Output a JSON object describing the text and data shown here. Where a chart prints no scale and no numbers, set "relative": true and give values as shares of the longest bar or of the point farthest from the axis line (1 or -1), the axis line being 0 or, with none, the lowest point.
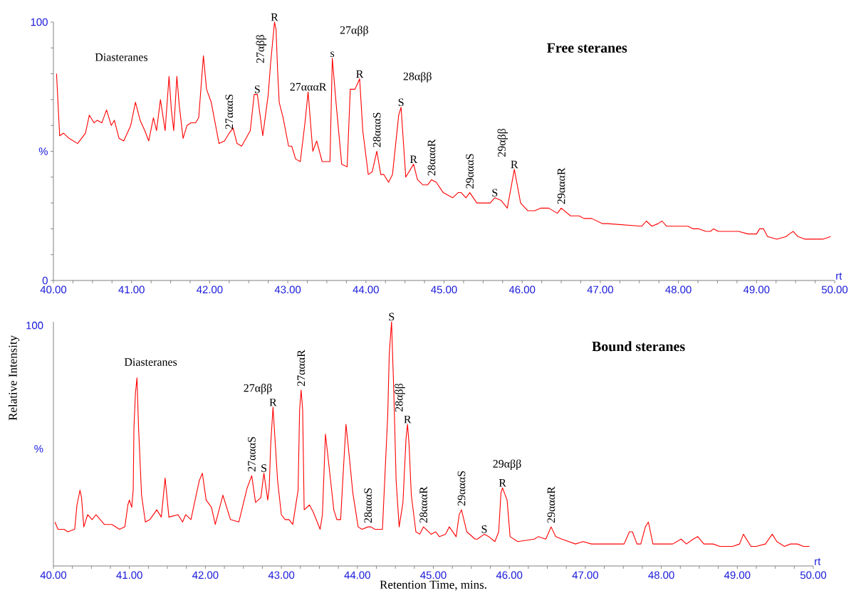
{
  "chart_data": [
    {
      "type": "line",
      "title": "Free steranes",
      "color": "#ff0000",
      "xlim": [
        40,
        50
      ],
      "ylim": [
        0,
        100
      ],
      "xticks": [
        {
          "value": 40,
          "label": "40.00"
        },
        {
          "value": 40.25,
          "label": null
        },
        {
          "value": 40.5,
          "label": null
        },
        {
          "value": 40.75,
          "label": null
        },
        {
          "value": 41,
          "label": "41.00"
        },
        {
          "value": 41.25,
          "label": null
        },
        {
          "value": 41.5,
          "label": null
        },
        {
          "value": 41.75,
          "label": null
        },
        {
          "value": 42,
          "label": "42.00"
        },
        {
          "value": 42.25,
          "label": null
        },
        {
          "value": 42.5,
          "label": null
        },
        {
          "value": 42.75,
          "label": null
        },
        {
          "value": 43,
          "label": "43.00"
        },
        {
          "value": 43.25,
          "label": null
        },
        {
          "value": 43.5,
          "label": null
        },
        {
          "value": 43.75,
          "label": null
        },
        {
          "value": 44,
          "label": "44.00"
        },
        {
          "value": 44.25,
          "label": null
        },
        {
          "value": 44.5,
          "label": null
        },
        {
          "value": 44.75,
          "label": null
        },
        {
          "value": 45,
          "label": "45.00"
        },
        {
          "value": 45.25,
          "label": null
        },
        {
          "value": 45.5,
          "label": null
        },
        {
          "value": 45.75,
          "label": null
        },
        {
          "value": 46,
          "label": "46.00"
        },
        {
          "value": 46.25,
          "label": null
        },
        {
          "value": 46.5,
          "label": null
        },
        {
          "value": 46.75,
          "label": null
        },
        {
          "value": 47,
          "label": "47.00"
        },
        {
          "value": 47.25,
          "label": null
        },
        {
          "value": 47.5,
          "label": null
        },
        {
          "value": 47.75,
          "label": null
        },
        {
          "value": 48,
          "label": "48.00"
        },
        {
          "value": 48.25,
          "label": null
        },
        {
          "value": 48.5,
          "label": null
        },
        {
          "value": 48.75,
          "label": null
        },
        {
          "value": 49,
          "label": "49.00"
        },
        {
          "value": 49.25,
          "label": null
        },
        {
          "value": 49.5,
          "label": null
        },
        {
          "value": 49.75,
          "label": null
        },
        {
          "value": 50,
          "label": "50.00"
        }
      ],
      "yticks": [
        0,
        {
          "value": 10,
          "label": null
        },
        {
          "value": 20,
          "label": null
        },
        {
          "value": 30,
          "label": null
        },
        {
          "value": 40,
          "label": null
        },
        {
          "value": 50,
          "label": "%"
        },
        {
          "value": 60,
          "label": null
        },
        {
          "value": 70,
          "label": null
        },
        {
          "value": 80,
          "label": null
        },
        {
          "value": 90,
          "label": null
        },
        100
      ],
      "x": [
        40.04,
        40.06,
        40.08,
        40.13,
        40.2,
        40.31,
        40.41,
        40.46,
        40.52,
        40.56,
        40.62,
        40.68,
        40.74,
        40.78,
        40.84,
        40.9,
        40.99,
        41.05,
        41.11,
        41.17,
        41.22,
        41.28,
        41.32,
        41.37,
        41.43,
        41.48,
        41.51,
        41.54,
        41.58,
        41.61,
        41.66,
        41.71,
        41.76,
        41.82,
        41.86,
        41.9,
        41.92,
        41.96,
        42.02,
        42.12,
        42.19,
        42.25,
        42.3,
        42.35,
        42.41,
        42.52,
        42.57,
        42.61,
        42.68,
        42.75,
        42.78,
        42.83,
        42.85,
        42.87,
        42.89,
        42.94,
        43.01,
        43.05,
        43.1,
        43.16,
        43.22,
        43.26,
        43.32,
        43.37,
        43.44,
        43.54,
        43.57,
        43.62,
        43.69,
        43.76,
        43.8,
        43.86,
        43.92,
        43.96,
        44.03,
        44.08,
        44.14,
        44.19,
        44.23,
        44.29,
        44.34,
        44.42,
        44.45,
        44.51,
        44.61,
        44.66,
        44.73,
        44.79,
        44.84,
        44.9,
        44.99,
        45.11,
        45.18,
        45.22,
        45.28,
        45.33,
        45.42,
        45.59,
        45.65,
        45.73,
        45.81,
        45.9,
        45.98,
        46.07,
        46.16,
        46.24,
        46.34,
        46.45,
        46.5,
        46.62,
        46.66,
        46.73,
        46.79,
        46.89,
        47.03,
        47.09,
        47.53,
        47.59,
        47.66,
        47.74,
        47.79,
        47.85,
        48.0,
        48.12,
        48.19,
        48.26,
        48.35,
        48.41,
        48.45,
        48.51,
        48.62,
        48.77,
        48.89,
        49.0,
        49.04,
        49.09,
        49.14,
        49.26,
        49.38,
        49.42,
        49.47,
        49.53,
        49.62,
        49.82,
        49.85,
        49.95
      ],
      "values": [
        80,
        68,
        56,
        57,
        55,
        53,
        57,
        64,
        61,
        62,
        61,
        66,
        60,
        62,
        55,
        54,
        60,
        69,
        62,
        58,
        54,
        63,
        58,
        70,
        58,
        79,
        66,
        58,
        79,
        68,
        55,
        60,
        61,
        61,
        63,
        79,
        87,
        74,
        69,
        53,
        54,
        57,
        59,
        53,
        52,
        58,
        72,
        72,
        56,
        72,
        84,
        100,
        97,
        81,
        69,
        63,
        52,
        52,
        47,
        46,
        61,
        73,
        50,
        54,
        46,
        46,
        86,
        68,
        45,
        44,
        74,
        74,
        78,
        58,
        41,
        42,
        50,
        41,
        41,
        38,
        41,
        64,
        67,
        40,
        45,
        39,
        37,
        37,
        39,
        38,
        34,
        32,
        34,
        34,
        32,
        34,
        30,
        30,
        32,
        31,
        28,
        43,
        30,
        27,
        27,
        28,
        28,
        26,
        28,
        25,
        25,
        25,
        24,
        24,
        22,
        22,
        21,
        23,
        21,
        22,
        23,
        21,
        21,
        21,
        20,
        20,
        19,
        19,
        20,
        19,
        19,
        19,
        18,
        18,
        20,
        20,
        17,
        16,
        17,
        18,
        19,
        17,
        16,
        16,
        16,
        17
      ],
      "annotations": [
        {
          "text": "27αααS",
          "x": 42.25,
          "y": 57
        },
        {
          "text": "S",
          "x": 42.61,
          "y": 72
        },
        {
          "text": "R",
          "x": 42.83,
          "y": 100
        },
        {
          "text": "27αααR",
          "x": 43.26,
          "y": 73
        },
        {
          "text": "s",
          "x": 43.57,
          "y": 86
        },
        {
          "text": "R",
          "x": 43.92,
          "y": 78
        },
        {
          "text": "28αααS",
          "x": 44.14,
          "y": 50
        },
        {
          "text": "S",
          "x": 44.45,
          "y": 67
        },
        {
          "text": "R",
          "x": 44.61,
          "y": 45
        },
        {
          "text": "28αααR",
          "x": 44.84,
          "y": 39
        },
        {
          "text": "29αααS",
          "x": 45.33,
          "y": 34
        },
        {
          "text": "S",
          "x": 45.65,
          "y": 32
        },
        {
          "text": "R",
          "x": 45.9,
          "y": 43
        },
        {
          "text": "29αααR",
          "x": 46.5,
          "y": 28
        },
        "Diasteranes",
        "27αββ",
        "27αββ",
        "28αββ",
        "29αββ",
        "rt"
      ]
    },
    {
      "type": "line",
      "title": "Bound steranes",
      "xlabel": "Retention Time, mins.",
      "ylabel": "Relative Intensity",
      "color": "#ff0000",
      "relative": true,
      "xlim": [
        40,
        50
      ],
      "xticks": [
        {
          "value": 40,
          "label": "40.00"
        },
        {
          "value": 40.25,
          "label": null
        },
        {
          "value": 40.5,
          "label": null
        },
        {
          "value": 40.75,
          "label": null
        },
        {
          "value": 41,
          "label": "41.00"
        },
        {
          "value": 41.25,
          "label": null
        },
        {
          "value": 41.5,
          "label": null
        },
        {
          "value": 41.75,
          "label": null
        },
        {
          "value": 42,
          "label": "42.00"
        },
        {
          "value": 42.25,
          "label": null
        },
        {
          "value": 42.5,
          "label": null
        },
        {
          "value": 42.75,
          "label": null
        },
        {
          "value": 43,
          "label": "43.00"
        },
        {
          "value": 43.25,
          "label": null
        },
        {
          "value": 43.5,
          "label": null
        },
        {
          "value": 43.75,
          "label": null
        },
        {
          "value": 44,
          "label": "44.00"
        },
        {
          "value": 44.25,
          "label": null
        },
        {
          "value": 44.5,
          "label": null
        },
        {
          "value": 44.75,
          "label": null
        },
        {
          "value": 45,
          "label": "45.00"
        },
        {
          "value": 45.25,
          "label": null
        },
        {
          "value": 45.5,
          "label": null
        },
        {
          "value": 45.75,
          "label": null
        },
        {
          "value": 46,
          "label": "46.00"
        },
        {
          "value": 46.25,
          "label": null
        },
        {
          "value": 46.5,
          "label": null
        },
        {
          "value": 46.75,
          "label": null
        },
        {
          "value": 47,
          "label": "47.00"
        },
        {
          "value": 47.25,
          "label": null
        },
        {
          "value": 47.5,
          "label": null
        },
        {
          "value": 47.75,
          "label": null
        },
        {
          "value": 48,
          "label": "48.00"
        },
        {
          "value": 48.25,
          "label": null
        },
        {
          "value": 48.5,
          "label": null
        },
        {
          "value": 48.75,
          "label": null
        },
        {
          "value": 49,
          "label": "49.00"
        },
        {
          "value": 49.25,
          "label": null
        },
        {
          "value": 49.5,
          "label": null
        },
        {
          "value": 49.75,
          "label": null
        },
        {
          "value": 50,
          "label": "50.00"
        }
      ],
      "x": [
        40.02,
        40.06,
        40.14,
        40.19,
        40.28,
        40.31,
        40.35,
        40.37,
        40.4,
        40.45,
        40.51,
        40.56,
        40.67,
        40.77,
        40.87,
        40.94,
        40.98,
        41.0,
        41.03,
        41.05,
        41.06,
        41.08,
        41.1,
        41.12,
        41.16,
        41.21,
        41.27,
        41.36,
        41.42,
        41.47,
        41.52,
        41.64,
        41.7,
        41.74,
        41.81,
        41.92,
        41.96,
        42.01,
        42.08,
        42.13,
        42.23,
        42.33,
        42.44,
        42.55,
        42.61,
        42.66,
        42.73,
        42.77,
        42.82,
        42.84,
        42.86,
        42.89,
        42.92,
        42.95,
        43.0,
        43.05,
        43.1,
        43.15,
        43.22,
        43.24,
        43.26,
        43.28,
        43.3,
        43.37,
        43.42,
        43.51,
        43.54,
        43.58,
        43.63,
        43.69,
        43.73,
        43.78,
        43.81,
        43.85,
        43.89,
        43.94,
        44.01,
        44.06,
        44.14,
        44.18,
        44.23,
        44.28,
        44.33,
        44.4,
        44.42,
        44.45,
        44.46,
        44.48,
        44.51,
        44.55,
        44.6,
        44.64,
        44.66,
        44.68,
        44.71,
        44.77,
        44.82,
        44.87,
        44.97,
        45.03,
        45.08,
        45.16,
        45.21,
        45.3,
        45.34,
        45.37,
        45.44,
        45.55,
        45.58,
        45.67,
        45.73,
        45.81,
        45.86,
        45.89,
        45.91,
        45.97,
        46.01,
        46.11,
        46.33,
        46.38,
        46.48,
        46.55,
        46.61,
        46.69,
        46.78,
        46.87,
        46.97,
        47.08,
        47.22,
        47.4,
        47.51,
        47.58,
        47.62,
        47.68,
        47.73,
        47.79,
        47.83,
        47.89,
        47.99,
        48.15,
        48.26,
        48.33,
        48.42,
        48.48,
        48.56,
        48.68,
        48.77,
        48.94,
        49.03,
        49.08,
        49.18,
        49.25,
        49.37,
        49.46,
        49.52,
        49.62,
        49.7,
        49.79,
        49.87,
        49.95
      ],
      "values": [
        0.18,
        0.15,
        0.15,
        0.14,
        0.15,
        0.25,
        0.31,
        0.28,
        0.16,
        0.21,
        0.19,
        0.21,
        0.17,
        0.17,
        0.15,
        0.16,
        0.25,
        0.27,
        0.24,
        0.31,
        0.57,
        0.71,
        0.77,
        0.57,
        0.29,
        0.18,
        0.19,
        0.23,
        0.2,
        0.36,
        0.2,
        0.21,
        0.18,
        0.21,
        0.19,
        0.35,
        0.38,
        0.27,
        0.24,
        0.17,
        0.29,
        0.19,
        0.18,
        0.32,
        0.37,
        0.26,
        0.28,
        0.38,
        0.27,
        0.32,
        0.5,
        0.65,
        0.5,
        0.35,
        0.21,
        0.19,
        0.19,
        0.17,
        0.31,
        0.64,
        0.72,
        0.64,
        0.23,
        0.25,
        0.22,
        0.15,
        0.21,
        0.54,
        0.4,
        0.23,
        0.19,
        0.19,
        0.36,
        0.58,
        0.46,
        0.3,
        0.16,
        0.15,
        0.16,
        0.16,
        0.15,
        0.15,
        0.15,
        0.62,
        0.87,
        1,
        0.9,
        0.71,
        0.35,
        0.16,
        0.26,
        0.52,
        0.58,
        0.5,
        0.29,
        0.14,
        0.13,
        0.16,
        0.13,
        0.14,
        0.12,
        0.13,
        0.16,
        0.12,
        0.21,
        0.23,
        0.14,
        0.11,
        0.11,
        0.13,
        0.12,
        0.1,
        0.14,
        0.3,
        0.32,
        0.27,
        0.12,
        0.1,
        0.11,
        0.12,
        0.11,
        0.16,
        0.12,
        0.11,
        0.1,
        0.09,
        0.1,
        0.09,
        0.09,
        0.09,
        0.09,
        0.14,
        0.14,
        0.09,
        0.09,
        0.16,
        0.18,
        0.09,
        0.09,
        0.09,
        0.11,
        0.09,
        0.11,
        0.12,
        0.09,
        0.09,
        0.08,
        0.08,
        0.09,
        0.13,
        0.08,
        0.08,
        0.09,
        0.13,
        0.1,
        0.08,
        0.09,
        0.09,
        0.08,
        0.08
      ],
      "annotations": [
        {
          "text": "27αααS",
          "x": 42.61,
          "y": 0.37
        },
        {
          "text": "S",
          "x": 42.77,
          "y": 0.38
        },
        {
          "text": "R",
          "x": 42.89,
          "y": 0.65
        },
        {
          "text": "27αααR",
          "x": 43.26,
          "y": 0.72
        },
        {
          "text": "S",
          "x": 44.45,
          "y": 1
        },
        {
          "text": "R",
          "x": 44.66,
          "y": 0.58
        },
        {
          "text": "28αααS",
          "x": 44.14,
          "y": 0.16
        },
        {
          "text": "28αααR",
          "x": 44.87,
          "y": 0.16
        },
        {
          "text": "29αααS",
          "x": 45.37,
          "y": 0.23
        },
        {
          "text": "S",
          "x": 45.67,
          "y": 0.13
        },
        {
          "text": "R",
          "x": 45.91,
          "y": 0.32
        },
        {
          "text": "29αααR",
          "x": 46.55,
          "y": 0.16
        },
        "Diasteranes",
        "27αββ",
        "28αββ",
        "29αββ",
        "100",
        "%",
        "rt"
      ]
    }
  ]
}
